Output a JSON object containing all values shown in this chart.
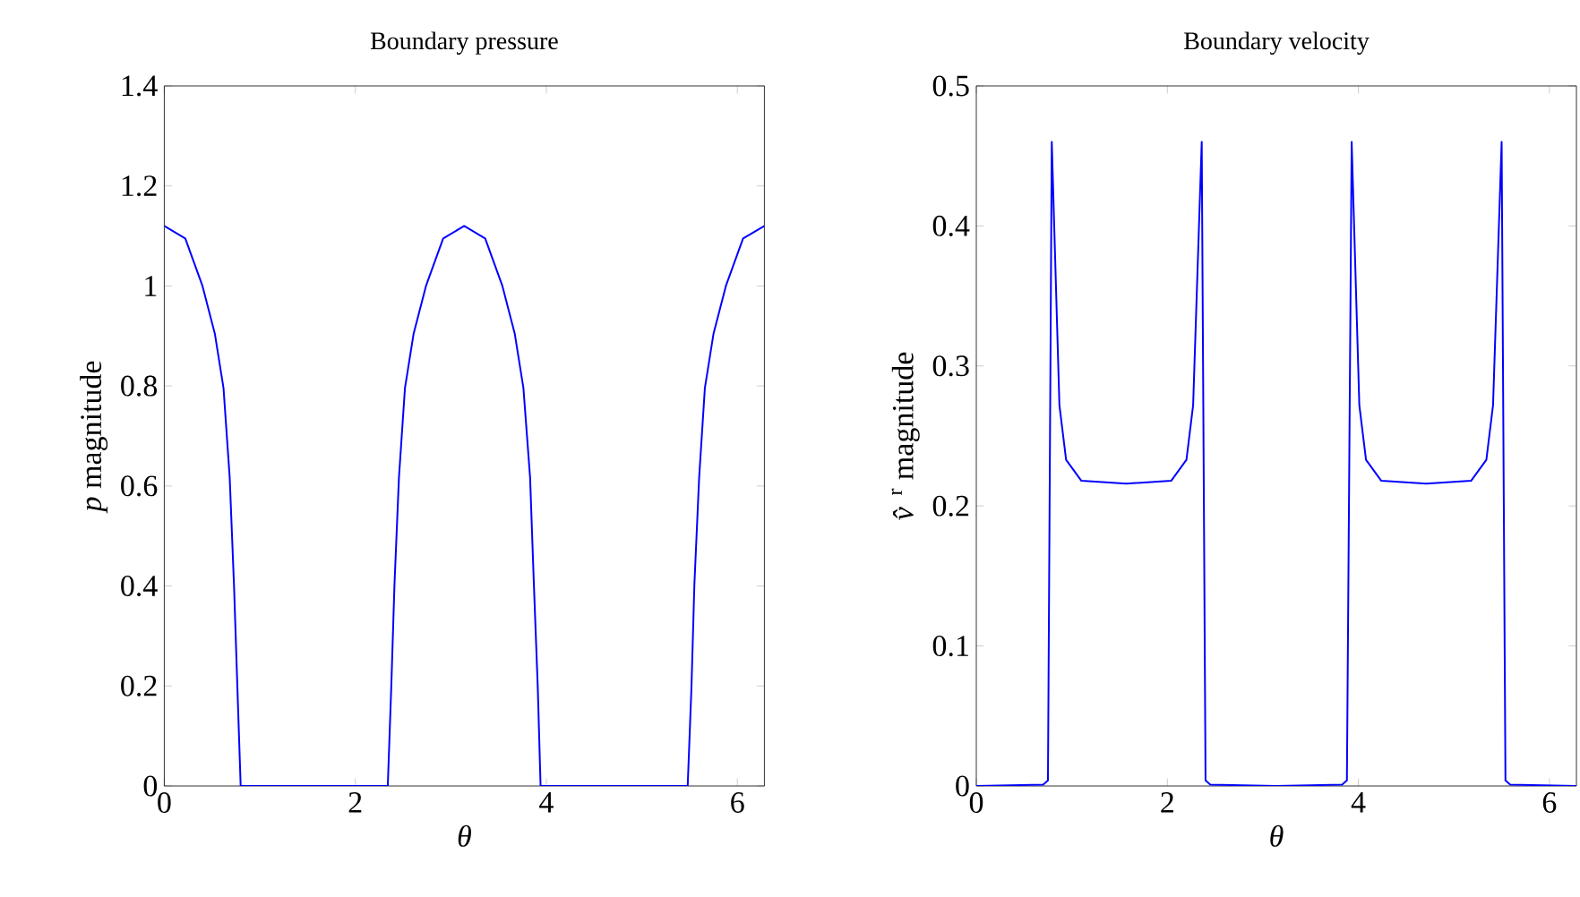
{
  "chart_data": [
    {
      "type": "line",
      "title": "Boundary pressure",
      "xlabel": "*θ*",
      "ylabel": "*p* magnitude",
      "color": "#0000ff",
      "x": [
        0,
        0.22,
        0.4,
        0.53,
        0.62,
        0.685,
        0.73,
        0.765,
        0.8,
        2.34,
        2.377,
        2.41,
        2.457,
        2.52,
        2.61,
        2.74,
        2.92,
        3.14,
        3.36,
        3.54,
        3.67,
        3.76,
        3.83,
        3.87,
        3.91,
        3.94,
        5.48,
        5.52,
        5.55,
        5.6,
        5.66,
        5.75,
        5.88,
        6.06,
        6.2832
      ],
      "values": [
        1.12,
        1.095,
        1.0,
        0.904,
        0.796,
        0.617,
        0.402,
        0.2,
        0,
        0,
        0.2,
        0.402,
        0.617,
        0.796,
        0.904,
        1.0,
        1.095,
        1.12,
        1.095,
        1.0,
        0.904,
        0.796,
        0.617,
        0.402,
        0.2,
        0,
        0,
        0.2,
        0.402,
        0.617,
        0.796,
        0.904,
        1.0,
        1.095,
        1.12
      ],
      "xlim": [
        0,
        6.2832
      ],
      "ylim": [
        0,
        1.4
      ],
      "xticks": [
        0,
        2,
        4,
        6
      ],
      "yticks": [
        0,
        0.2,
        0.4,
        0.6,
        0.8,
        1,
        1.2,
        1.4
      ]
    },
    {
      "type": "line",
      "title": "Boundary velocity",
      "xlabel": "*θ*",
      "ylabel": "*v̂*$^{r}$ magnitude",
      "color": "#0000ff",
      "x": [
        0,
        0.7,
        0.75,
        0.79,
        0.87,
        0.94,
        1.1,
        1.57,
        2.04,
        2.2,
        2.27,
        2.36,
        2.4,
        2.45,
        3.14,
        3.83,
        3.88,
        3.93,
        4.01,
        4.08,
        4.24,
        4.71,
        5.18,
        5.34,
        5.41,
        5.5,
        5.54,
        5.59,
        6.2832
      ],
      "values": [
        0,
        0.001,
        0.004,
        0.46,
        0.272,
        0.233,
        0.218,
        0.216,
        0.218,
        0.233,
        0.272,
        0.46,
        0.004,
        0.001,
        0,
        0.001,
        0.004,
        0.46,
        0.272,
        0.233,
        0.218,
        0.216,
        0.218,
        0.233,
        0.272,
        0.46,
        0.004,
        0.001,
        0
      ],
      "xlim": [
        0,
        6.2832
      ],
      "ylim": [
        0,
        0.5
      ],
      "xticks": [
        0,
        2,
        4,
        6
      ],
      "yticks": [
        0,
        0.1,
        0.2,
        0.3,
        0.4,
        0.5
      ]
    }
  ]
}
